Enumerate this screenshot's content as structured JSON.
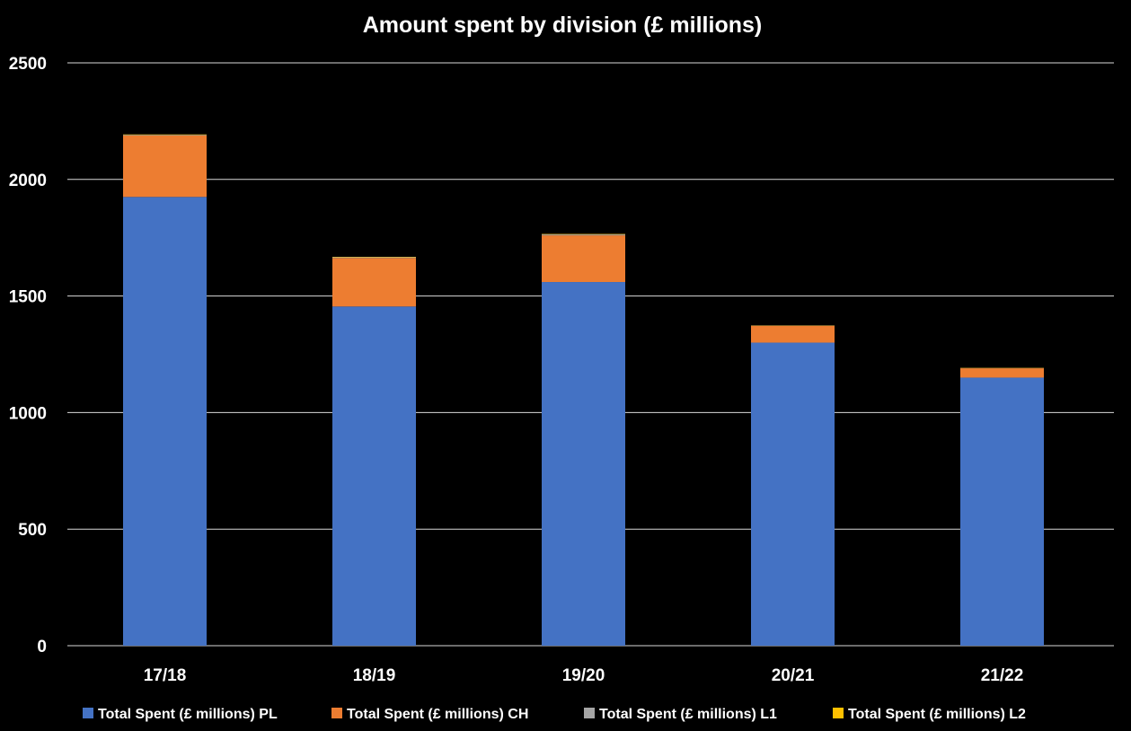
{
  "chart_data": {
    "type": "bar",
    "stacked": true,
    "title": "Amount spent by division (£ millions)",
    "xlabel": "",
    "ylabel": "",
    "ylim": [
      0,
      2500
    ],
    "yticks": [
      0,
      500,
      1000,
      1500,
      2000,
      2500
    ],
    "grid": true,
    "legend_position": "bottom",
    "categories": [
      "17/18",
      "18/19",
      "19/20",
      "20/21",
      "21/22"
    ],
    "series": [
      {
        "name": "Total Spent (£ millions) PL",
        "color": "#4472C4",
        "values": [
          1925,
          1455,
          1560,
          1300,
          1150
        ]
      },
      {
        "name": "Total Spent (£ millions) CH",
        "color": "#ED7D31",
        "values": [
          263,
          208,
          200,
          72,
          40
        ]
      },
      {
        "name": "Total Spent (£ millions) L1",
        "color": "#A5A5A5",
        "values": [
          3,
          3,
          4,
          1,
          1
        ]
      },
      {
        "name": "Total Spent (£ millions) L2",
        "color": "#FFC000",
        "values": [
          2,
          2,
          2,
          1,
          1
        ]
      }
    ],
    "colors": {
      "background": "#000000",
      "text": "#FFFFFF",
      "gridline": "#D9D9D9"
    }
  }
}
